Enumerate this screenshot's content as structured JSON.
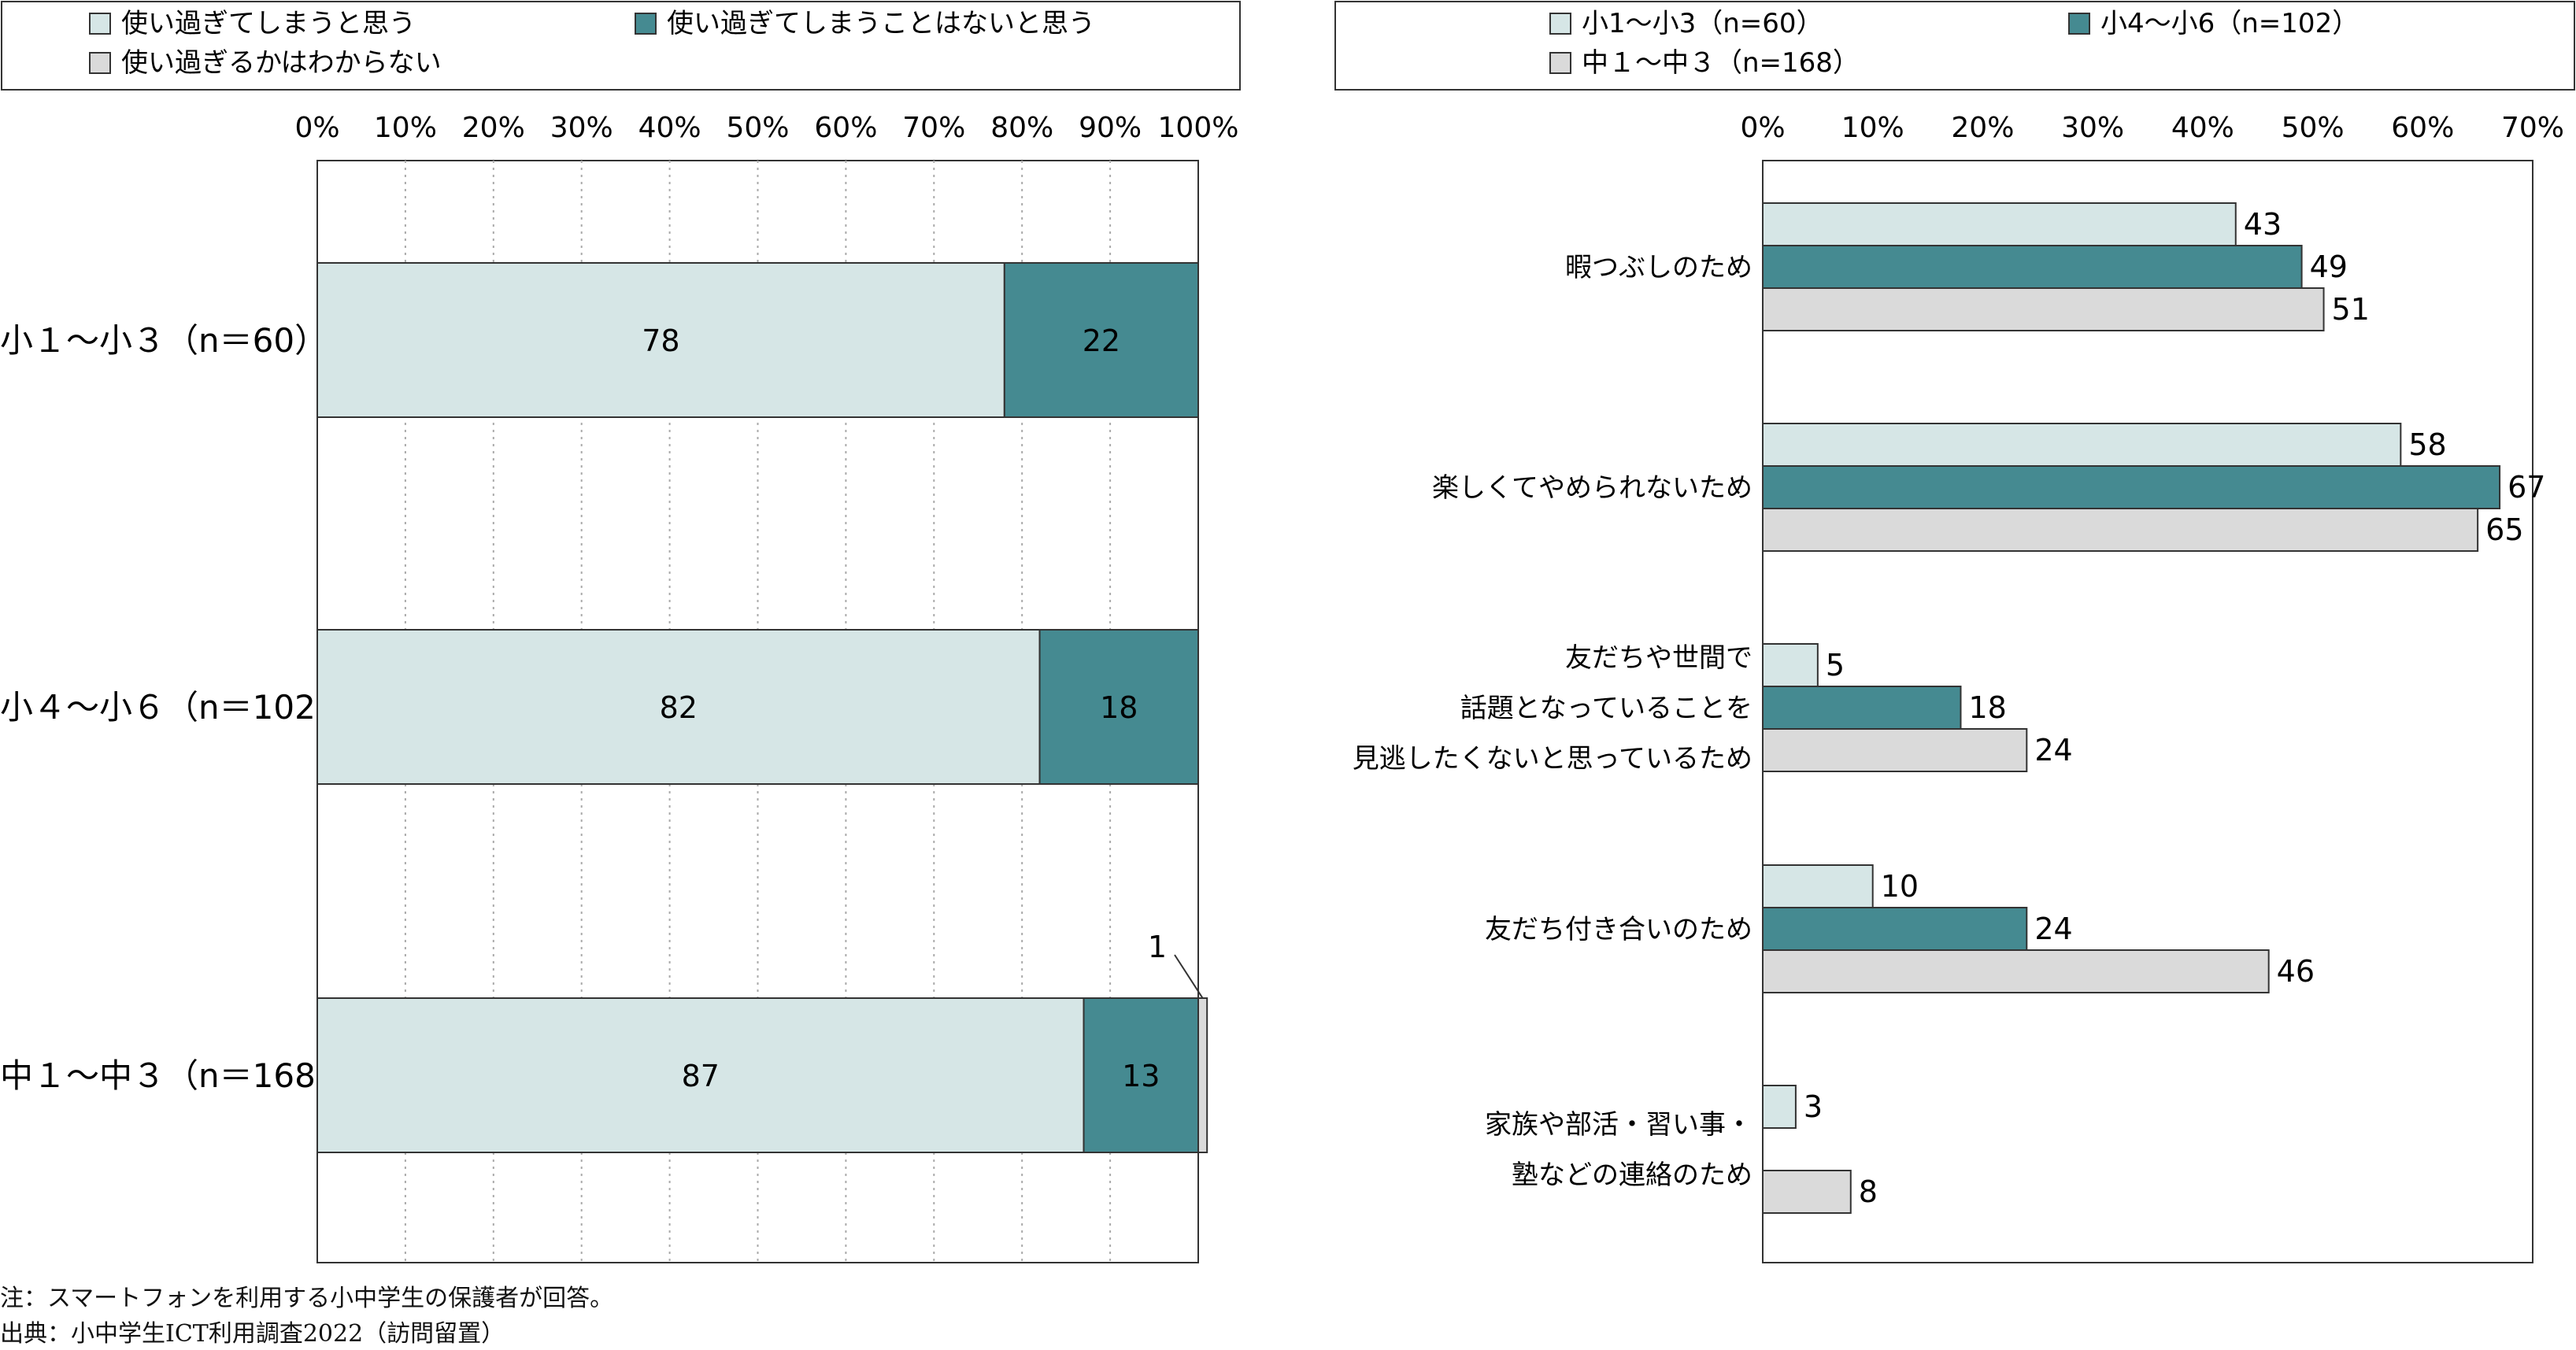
{
  "colors": {
    "light": "#d6e6e6",
    "teal": "#458a91",
    "gray": "#dadada",
    "stroke": "#333333",
    "grid": "#aaaaaa"
  },
  "notes": {
    "note": "注：スマートフォンを利用する小中学生の保護者が回答。",
    "source": "出典：小中学生ICT利用調査2022（訪問留置）"
  },
  "chart_data": [
    {
      "type": "bar",
      "orientation": "horizontal",
      "stacked": true,
      "xlim": [
        0,
        100
      ],
      "x_ticks": [
        "0%",
        "10%",
        "20%",
        "30%",
        "40%",
        "50%",
        "60%",
        "70%",
        "80%",
        "90%",
        "100%"
      ],
      "legend": [
        "使い過ぎてしまうと思う",
        "使い過ぎてしまうことはないと思う",
        "使い過ぎるかはわからない"
      ],
      "categories": [
        "小１〜小３（n＝60）",
        "小４〜小６（n＝102）",
        "中１〜中３（n＝168）"
      ],
      "series": [
        {
          "name": "使い過ぎてしまうと思う",
          "values": [
            78,
            82,
            87
          ],
          "labels": [
            "78",
            "82",
            "87"
          ]
        },
        {
          "name": "使い過ぎてしまうことはないと思う",
          "values": [
            22,
            18,
            13
          ],
          "labels": [
            "22",
            "18",
            "13"
          ]
        },
        {
          "name": "使い過ぎるかはわからない",
          "values": [
            0,
            0,
            1
          ],
          "labels": [
            "",
            "",
            "1"
          ]
        }
      ]
    },
    {
      "type": "bar",
      "orientation": "horizontal",
      "stacked": false,
      "xlim": [
        0,
        70
      ],
      "x_ticks": [
        "0%",
        "10%",
        "20%",
        "30%",
        "40%",
        "50%",
        "60%",
        "70%"
      ],
      "legend": [
        "小1〜小3（n=60）",
        "小4〜小6（n=102）",
        "中１〜中３（n=168）"
      ],
      "categories": [
        [
          "暇つぶしのため"
        ],
        [
          "楽しくてやめられないため"
        ],
        [
          "友だちや世間で",
          "話題となっていることを",
          "見逃したくないと思っているため"
        ],
        [
          "友だち付き合いのため"
        ],
        [
          "家族や部活・習い事・",
          "塾などの連絡のため"
        ]
      ],
      "series": [
        {
          "name": "小1〜小3（n=60）",
          "values": [
            43,
            58,
            5,
            10,
            3
          ],
          "labels": [
            "43",
            "58",
            "5",
            "10",
            "3"
          ]
        },
        {
          "name": "小4〜小6（n=102）",
          "values": [
            49,
            67,
            18,
            24,
            null
          ],
          "labels": [
            "49",
            "67",
            "18",
            "24",
            ""
          ]
        },
        {
          "name": "中１〜中３（n=168）",
          "values": [
            51,
            65,
            24,
            46,
            8
          ],
          "labels": [
            "51",
            "65",
            "24",
            "46",
            "8"
          ]
        }
      ]
    }
  ]
}
